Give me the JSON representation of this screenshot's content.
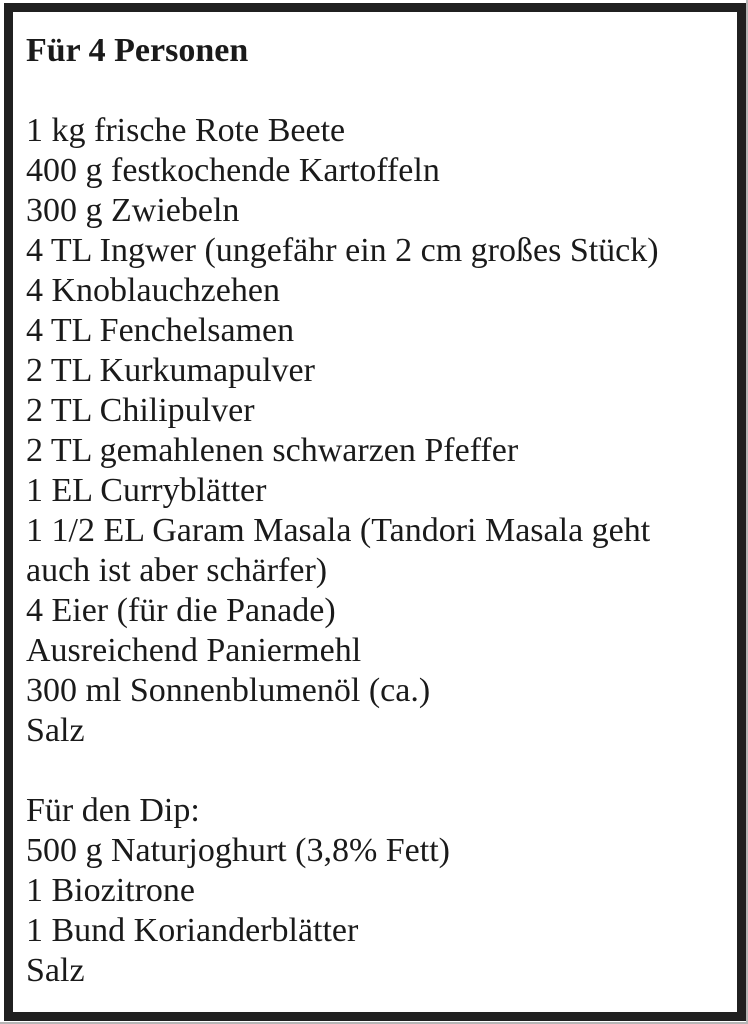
{
  "document": {
    "title": "Für 4 Personen",
    "ingredients": [
      "1 kg frische Rote Beete",
      "400 g festkochende Kartoffeln",
      "300 g Zwiebeln",
      "4 TL Ingwer (ungefähr ein 2 cm großes Stück)",
      "4 Knoblauchzehen",
      "4 TL Fenchelsamen",
      "2 TL Kurkumapulver",
      "2 TL Chilipulver",
      "2 TL gemahlenen schwarzen Pfeffer",
      "1 EL Curryblätter",
      "1 1/2 EL Garam Masala (Tandori Masala geht auch ist aber schärfer)",
      "4 Eier (für die Panade)",
      "Ausreichend Paniermehl",
      "300 ml Sonnenblumenöl (ca.)",
      "Salz"
    ],
    "dip": {
      "heading": "Für den Dip:",
      "ingredients": [
        "500 g Naturjoghurt (3,8% Fett)",
        "1 Biozitrone",
        "1 Bund Korianderblätter",
        "Salz"
      ]
    },
    "colors": {
      "border": "#202020",
      "text": "#1a1a1a",
      "background": "#ffffff"
    }
  }
}
